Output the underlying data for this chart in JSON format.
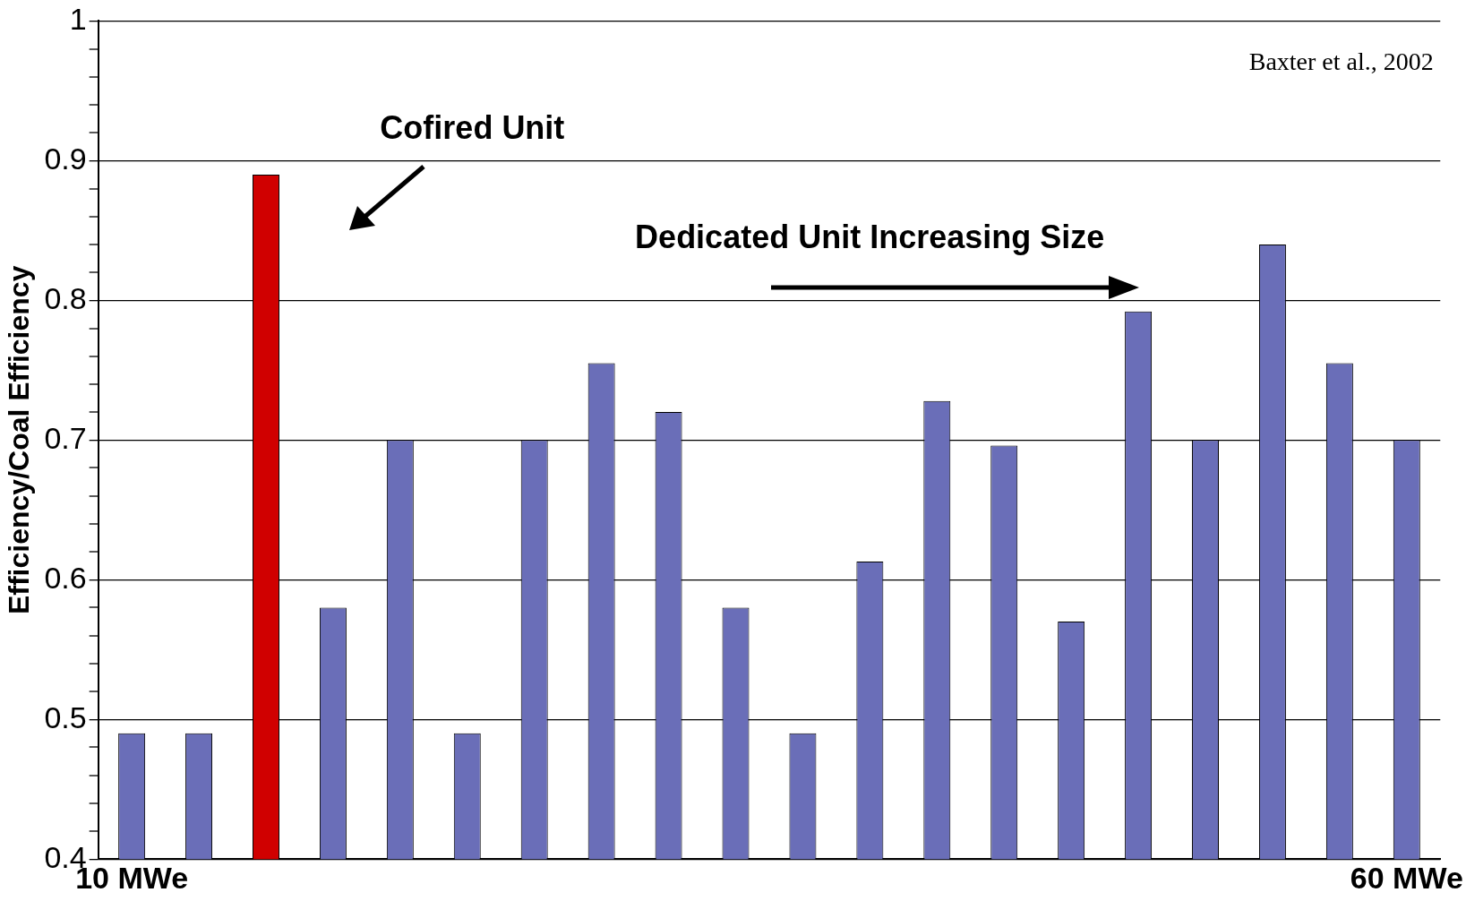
{
  "chart_data": {
    "type": "bar",
    "ylabel": "Efficiency/Coal Efficiency",
    "categories": [
      "10 MWe",
      null,
      null,
      null,
      null,
      null,
      null,
      null,
      null,
      null,
      null,
      null,
      null,
      null,
      null,
      null,
      null,
      null,
      null,
      "60 MWe"
    ],
    "series": [
      {
        "values": [
          0.49,
          0.49,
          0.89,
          0.58,
          0.7,
          0.49,
          0.7,
          0.755,
          0.72,
          0.58,
          0.49,
          0.613,
          0.728,
          0.696,
          0.57,
          0.792,
          0.7,
          0.84,
          0.755,
          0.7
        ],
        "colors": [
          "#6a6eb8",
          "#6a6eb8",
          "#d00000",
          "#6a6eb8",
          "#6a6eb8",
          "#6a6eb8",
          "#6a6eb8",
          "#6a6eb8",
          "#6a6eb8",
          "#6a6eb8",
          "#6a6eb8",
          "#6a6eb8",
          "#6a6eb8",
          "#6a6eb8",
          "#6a6eb8",
          "#6a6eb8",
          "#6a6eb8",
          "#6a6eb8",
          "#6a6eb8",
          "#6a6eb8"
        ]
      }
    ],
    "ylim": [
      0.4,
      1
    ],
    "yticks": [
      0.4,
      {
        "value": 0.42,
        "label": null
      },
      {
        "value": 0.44,
        "label": null
      },
      {
        "value": 0.46,
        "label": null
      },
      {
        "value": 0.48,
        "label": null
      },
      0.5,
      {
        "value": 0.52,
        "label": null
      },
      {
        "value": 0.54,
        "label": null
      },
      {
        "value": 0.56,
        "label": null
      },
      {
        "value": 0.58,
        "label": null
      },
      0.6,
      {
        "value": 0.62,
        "label": null
      },
      {
        "value": 0.64,
        "label": null
      },
      {
        "value": 0.66,
        "label": null
      },
      {
        "value": 0.68,
        "label": null
      },
      0.7,
      {
        "value": 0.72,
        "label": null
      },
      {
        "value": 0.74,
        "label": null
      },
      {
        "value": 0.76,
        "label": null
      },
      {
        "value": 0.78,
        "label": null
      },
      0.8,
      {
        "value": 0.82,
        "label": null
      },
      {
        "value": 0.84,
        "label": null
      },
      {
        "value": 0.86,
        "label": null
      },
      {
        "value": 0.88,
        "label": null
      },
      0.9,
      {
        "value": 0.92,
        "label": null
      },
      {
        "value": 0.94,
        "label": null
      },
      {
        "value": 0.96,
        "label": null
      },
      {
        "value": 0.98,
        "label": null
      },
      1
    ],
    "grid": "y",
    "annotations": [
      "Baxter et al., 2002",
      "Cofired Unit",
      "Dedicated Unit Increasing Size"
    ]
  }
}
